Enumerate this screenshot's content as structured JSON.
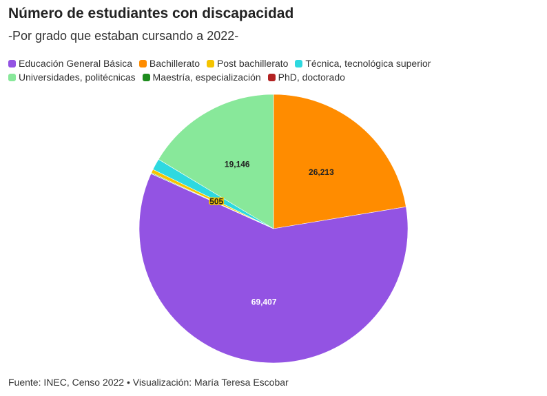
{
  "header": {
    "title": "Número de estudiantes con discapacidad",
    "subtitle": "-Por grado que estaban cursando a 2022-"
  },
  "footer": {
    "source": "Fuente: INEC, Censo 2022 • Visualización: María Teresa Escobar"
  },
  "chart_data": {
    "type": "pie",
    "title": "Número de estudiantes con discapacidad",
    "subtitle": "-Por grado que estaban cursando a 2022-",
    "start_angle_deg": 0,
    "direction": "clockwise",
    "legend_position": "top",
    "slices": [
      {
        "name": "Bachillerato",
        "value": 26213,
        "label": "26,213",
        "color": "#ff8c00",
        "label_color": "#222222"
      },
      {
        "name": "Educación General Básica",
        "value": 69407,
        "label": "69,407",
        "color": "#9353e3",
        "label_color": "#ffffff"
      },
      {
        "name": "PhD, doctorado",
        "value": 30,
        "label": "",
        "color": "#b22222",
        "label_color": "#222222"
      },
      {
        "name": "Maestría, especialización",
        "value": 110,
        "label": "",
        "color": "#1e8c1e",
        "label_color": "#222222"
      },
      {
        "name": "Post bachillerato",
        "value": 505,
        "label": "505",
        "color": "#f5c400",
        "label_color": "#222222"
      },
      {
        "name": "Técnica, tecnológica superior",
        "value": 1600,
        "label": "",
        "color": "#2ed9e0",
        "label_color": "#222222"
      },
      {
        "name": "Universidades, politécnicas",
        "value": 19146,
        "label": "19,146",
        "color": "#88e89a",
        "label_color": "#222222"
      }
    ],
    "legend": [
      {
        "name": "Educación General Básica",
        "color": "#9353e3"
      },
      {
        "name": "Bachillerato",
        "color": "#ff8c00"
      },
      {
        "name": "Post bachillerato",
        "color": "#f5c400"
      },
      {
        "name": "Técnica, tecnológica superior",
        "color": "#2ed9e0"
      },
      {
        "name": "Universidades, politécnicas",
        "color": "#88e89a"
      },
      {
        "name": "Maestría, especialización",
        "color": "#1e8c1e"
      },
      {
        "name": "PhD, doctorado",
        "color": "#b22222"
      }
    ]
  }
}
